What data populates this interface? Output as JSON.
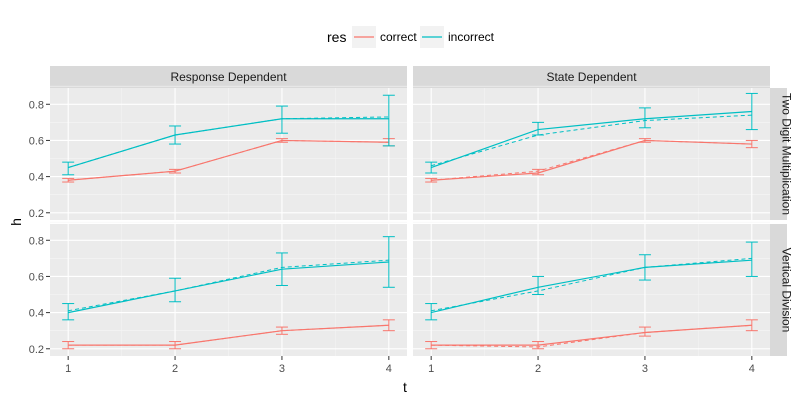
{
  "chart_data": {
    "type": "line",
    "xlabel": "t",
    "ylabel": "h",
    "x": [
      1,
      2,
      3,
      4
    ],
    "x_ticks": [
      "1",
      "2",
      "3",
      "4"
    ],
    "y_ticks": [
      "0.2",
      "0.4",
      "0.6",
      "0.8"
    ],
    "ylim": [
      0.16,
      0.89
    ],
    "xlim": [
      0.83,
      4.17
    ],
    "legend": {
      "title": "res",
      "position": "top",
      "entries": [
        {
          "label": "correct",
          "color": "#F8766D"
        },
        {
          "label": "incorrect",
          "color": "#00BFC4"
        }
      ]
    },
    "columns": [
      "Response Dependent",
      "State Dependent"
    ],
    "rows": [
      "Two Digit Multiplication",
      "Vertical Division"
    ],
    "panels": [
      {
        "column": "Response Dependent",
        "row": "Two Digit Multiplication",
        "series": [
          {
            "name": "correct",
            "color": "#F8766D",
            "observed": [
              0.38,
              0.43,
              0.6,
              0.59
            ],
            "error_low": [
              0.37,
              0.42,
              0.59,
              0.57
            ],
            "error_high": [
              0.39,
              0.44,
              0.61,
              0.61
            ],
            "predicted": [
              0.38,
              0.43,
              0.6,
              0.59
            ]
          },
          {
            "name": "incorrect",
            "color": "#00BFC4",
            "observed": [
              0.45,
              0.63,
              0.72,
              0.72
            ],
            "error_low": [
              0.41,
              0.58,
              0.64,
              0.57
            ],
            "error_high": [
              0.48,
              0.68,
              0.79,
              0.85
            ],
            "predicted": [
              0.45,
              0.63,
              0.72,
              0.73
            ]
          }
        ]
      },
      {
        "column": "State Dependent",
        "row": "Two Digit Multiplication",
        "series": [
          {
            "name": "correct",
            "color": "#F8766D",
            "observed": [
              0.38,
              0.42,
              0.6,
              0.58
            ],
            "error_low": [
              0.37,
              0.41,
              0.59,
              0.56
            ],
            "error_high": [
              0.39,
              0.44,
              0.61,
              0.6
            ],
            "predicted": [
              0.38,
              0.43,
              0.6,
              0.58
            ]
          },
          {
            "name": "incorrect",
            "color": "#00BFC4",
            "observed": [
              0.45,
              0.66,
              0.72,
              0.76
            ],
            "error_low": [
              0.42,
              0.63,
              0.67,
              0.66
            ],
            "error_high": [
              0.48,
              0.7,
              0.78,
              0.86
            ],
            "predicted": [
              0.46,
              0.63,
              0.71,
              0.74
            ]
          }
        ]
      },
      {
        "column": "Response Dependent",
        "row": "Vertical Division",
        "series": [
          {
            "name": "correct",
            "color": "#F8766D",
            "observed": [
              0.22,
              0.22,
              0.3,
              0.33
            ],
            "error_low": [
              0.2,
              0.2,
              0.28,
              0.3
            ],
            "error_high": [
              0.24,
              0.24,
              0.32,
              0.36
            ],
            "predicted": [
              0.22,
              0.22,
              0.3,
              0.33
            ]
          },
          {
            "name": "incorrect",
            "color": "#00BFC4",
            "observed": [
              0.4,
              0.52,
              0.64,
              0.68
            ],
            "error_low": [
              0.36,
              0.46,
              0.55,
              0.54
            ],
            "error_high": [
              0.45,
              0.59,
              0.73,
              0.82
            ],
            "predicted": [
              0.41,
              0.52,
              0.65,
              0.69
            ]
          }
        ]
      },
      {
        "column": "State Dependent",
        "row": "Vertical Division",
        "series": [
          {
            "name": "correct",
            "color": "#F8766D",
            "observed": [
              0.22,
              0.22,
              0.29,
              0.33
            ],
            "error_low": [
              0.2,
              0.2,
              0.27,
              0.3
            ],
            "error_high": [
              0.24,
              0.24,
              0.32,
              0.36
            ],
            "predicted": [
              0.22,
              0.21,
              0.29,
              0.33
            ]
          },
          {
            "name": "incorrect",
            "color": "#00BFC4",
            "observed": [
              0.4,
              0.54,
              0.65,
              0.69
            ],
            "error_low": [
              0.36,
              0.5,
              0.58,
              0.6
            ],
            "error_high": [
              0.45,
              0.6,
              0.72,
              0.79
            ],
            "predicted": [
              0.41,
              0.52,
              0.65,
              0.7
            ]
          }
        ]
      }
    ]
  }
}
